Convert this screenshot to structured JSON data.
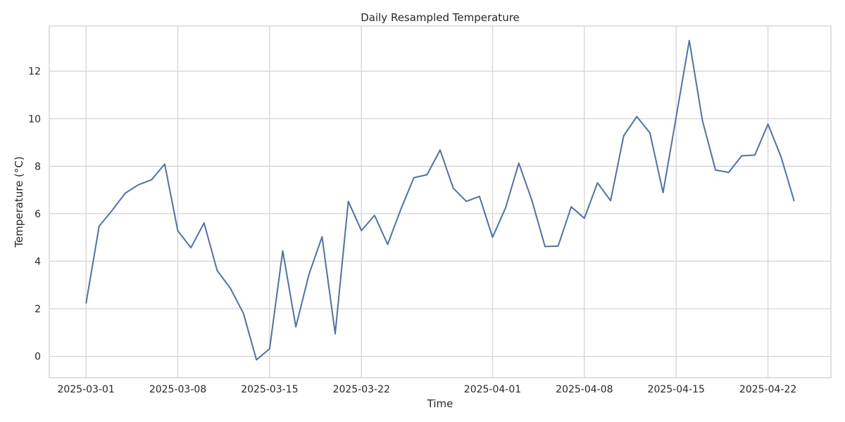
{
  "chart_data": {
    "type": "line",
    "title": "Daily Resampled Temperature",
    "xlabel": "Time",
    "ylabel": "Temperature (°C)",
    "x_start": "2025-03-01",
    "x_ticks": [
      "2025-03-01",
      "2025-03-08",
      "2025-03-15",
      "2025-03-22",
      "2025-04-01",
      "2025-04-08",
      "2025-04-15",
      "2025-04-22"
    ],
    "y_ticks": [
      0,
      2,
      4,
      6,
      8,
      10,
      12
    ],
    "xlim": [
      "2024-02-28",
      "2025-04-25"
    ],
    "ylim": [
      -0.9,
      13.9
    ],
    "grid": true,
    "line_color": "#4c72b0",
    "series": [
      {
        "name": "",
        "x": [
          "2025-03-01",
          "2025-03-02",
          "2025-03-03",
          "2025-03-04",
          "2025-03-05",
          "2025-03-06",
          "2025-03-07",
          "2025-03-08",
          "2025-03-09",
          "2025-03-10",
          "2025-03-11",
          "2025-03-12",
          "2025-03-13",
          "2025-03-14",
          "2025-03-15",
          "2025-03-16",
          "2025-03-17",
          "2025-03-18",
          "2025-03-19",
          "2025-03-20",
          "2025-03-21",
          "2025-03-22",
          "2025-03-23",
          "2025-03-24",
          "2025-03-25",
          "2025-03-26",
          "2025-03-27",
          "2025-03-28",
          "2025-03-29",
          "2025-03-30",
          "2025-03-31",
          "2025-04-01",
          "2025-04-02",
          "2025-04-03",
          "2025-04-04",
          "2025-04-05",
          "2025-04-06",
          "2025-04-07",
          "2025-04-08",
          "2025-04-09",
          "2025-04-10",
          "2025-04-11",
          "2025-04-12",
          "2025-04-13",
          "2025-04-14",
          "2025-04-15",
          "2025-04-16",
          "2025-04-17",
          "2025-04-18",
          "2025-04-19",
          "2025-04-20",
          "2025-04-21",
          "2025-04-22",
          "2025-04-23",
          "2025-04-24"
        ],
        "values": [
          2.22,
          5.47,
          6.15,
          6.87,
          7.22,
          7.43,
          8.09,
          5.28,
          4.57,
          5.61,
          3.61,
          2.87,
          1.81,
          -0.15,
          0.32,
          4.44,
          1.24,
          3.45,
          5.03,
          0.95,
          6.52,
          5.29,
          5.93,
          4.71,
          6.18,
          7.52,
          7.64,
          8.68,
          7.08,
          6.52,
          6.73,
          5.01,
          6.26,
          8.13,
          6.56,
          4.62,
          4.64,
          6.29,
          5.81,
          7.3,
          6.55,
          9.28,
          10.09,
          9.4,
          6.89,
          10.07,
          13.29,
          9.93,
          7.84,
          7.74,
          8.44,
          8.47,
          9.77,
          8.39,
          6.53
        ]
      }
    ]
  }
}
